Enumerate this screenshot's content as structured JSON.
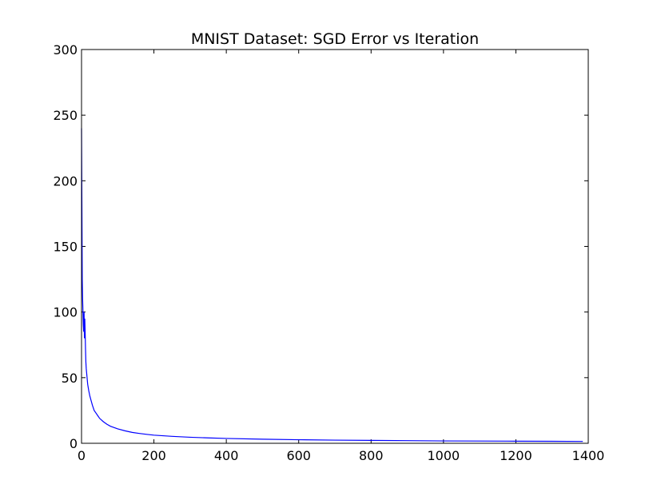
{
  "chart_data": {
    "type": "line",
    "title": "MNIST Dataset: SGD Error vs Iteration",
    "xlabel": "",
    "ylabel": "",
    "xlim": [
      0,
      1400
    ],
    "ylim": [
      0,
      300
    ],
    "x_ticks": [
      0,
      200,
      400,
      600,
      800,
      1000,
      1200,
      1400
    ],
    "y_ticks": [
      0,
      50,
      100,
      150,
      200,
      250,
      300
    ],
    "x_tick_labels": [
      "0",
      "200",
      "400",
      "600",
      "800",
      "1000",
      "1200",
      "1400"
    ],
    "y_tick_labels": [
      "0",
      "50",
      "100",
      "150",
      "200",
      "250",
      "300"
    ],
    "grid": false,
    "legend": "none",
    "series": [
      {
        "color": "#0000ff",
        "x": [
          0,
          1,
          2,
          3,
          4,
          5,
          6,
          7,
          8,
          9,
          10,
          11,
          12,
          13,
          15,
          17,
          20,
          23,
          26,
          30,
          35,
          40,
          45,
          50,
          60,
          70,
          80,
          90,
          100,
          120,
          140,
          160,
          180,
          200,
          250,
          300,
          350,
          400,
          500,
          600,
          700,
          800,
          900,
          1000,
          1100,
          1200,
          1300,
          1385
        ],
        "y": [
          240,
          185,
          125,
          110,
          100,
          90,
          85,
          100,
          80,
          95,
          85,
          72,
          62,
          57,
          51,
          45,
          40,
          36,
          33,
          29,
          25,
          23,
          21,
          19,
          16.5,
          14.5,
          13,
          12,
          11,
          9.5,
          8.3,
          7.5,
          6.8,
          6.2,
          5.3,
          4.6,
          4.1,
          3.7,
          3.1,
          2.7,
          2.4,
          2.2,
          2.0,
          1.8,
          1.7,
          1.6,
          1.5,
          1.4
        ]
      }
    ]
  }
}
